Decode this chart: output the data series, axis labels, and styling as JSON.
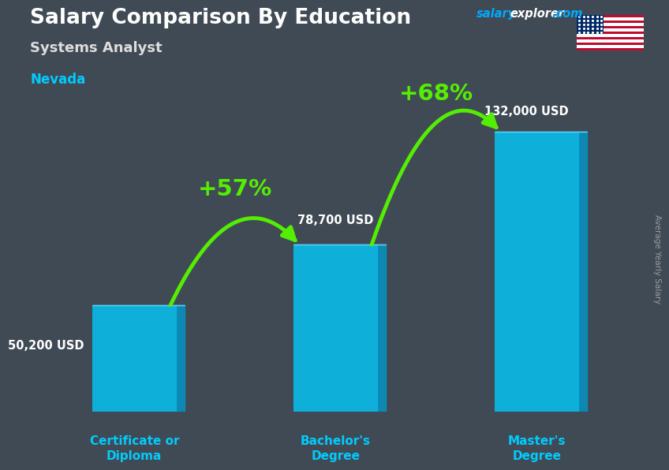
{
  "title": "Salary Comparison By Education",
  "subtitle": "Systems Analyst",
  "location": "Nevada",
  "site_text": "salaryexplorer.com",
  "site_salary_color": "#00aaff",
  "site_explorer_color": "#ffffff",
  "site_com_color": "#00aaff",
  "ylabel": "Average Yearly Salary",
  "categories": [
    "Certificate or\nDiploma",
    "Bachelor's\nDegree",
    "Master's\nDegree"
  ],
  "values": [
    50200,
    78700,
    132000
  ],
  "value_labels": [
    "50,200 USD",
    "78,700 USD",
    "132,000 USD"
  ],
  "pct_labels": [
    "+57%",
    "+68%"
  ],
  "bar_color": "#00ccff",
  "bar_alpha": 0.78,
  "arrow_color": "#55ee00",
  "pct_color": "#55ee00",
  "title_color": "#ffffff",
  "subtitle_color": "#dddddd",
  "location_color": "#00ccff",
  "value_label_color": "#ffffff",
  "xtick_color": "#00ccff",
  "ylabel_color": "#aaaaaa",
  "bg_color": "#404a55",
  "bar_positions": [
    0,
    1,
    2
  ],
  "bar_width": 0.42,
  "ylim": [
    0,
    185000
  ],
  "xlim": [
    -0.55,
    2.55
  ]
}
